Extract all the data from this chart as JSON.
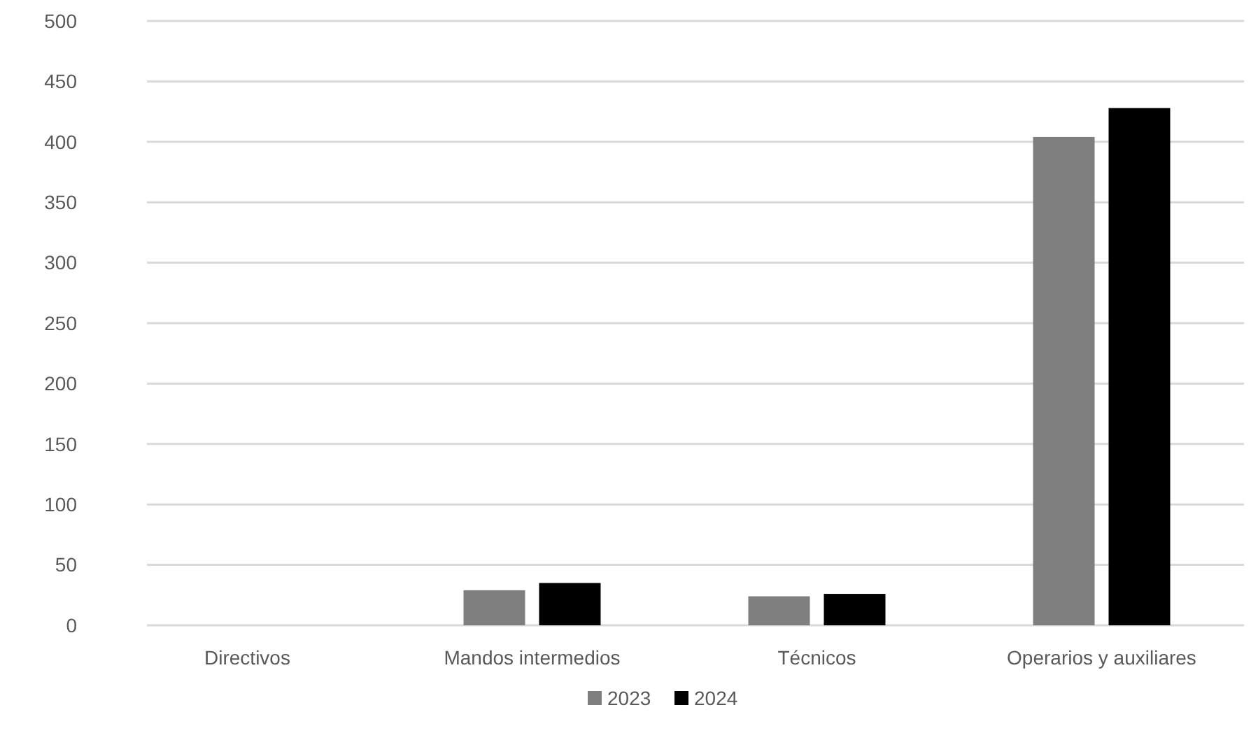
{
  "chart_data": {
    "type": "bar",
    "categories": [
      "Directivos",
      "Mandos intermedios",
      "Técnicos",
      "Operarios y auxiliares"
    ],
    "series": [
      {
        "name": "2023",
        "color": "#7f7f7f",
        "values": [
          0,
          29,
          24,
          404
        ]
      },
      {
        "name": "2024",
        "color": "#000000",
        "values": [
          0,
          35,
          26,
          428
        ]
      }
    ],
    "ylim": [
      0,
      500
    ],
    "yticks": [
      0,
      50,
      100,
      150,
      200,
      250,
      300,
      350,
      400,
      450,
      500
    ],
    "grid": "y",
    "legend": "bottom"
  }
}
